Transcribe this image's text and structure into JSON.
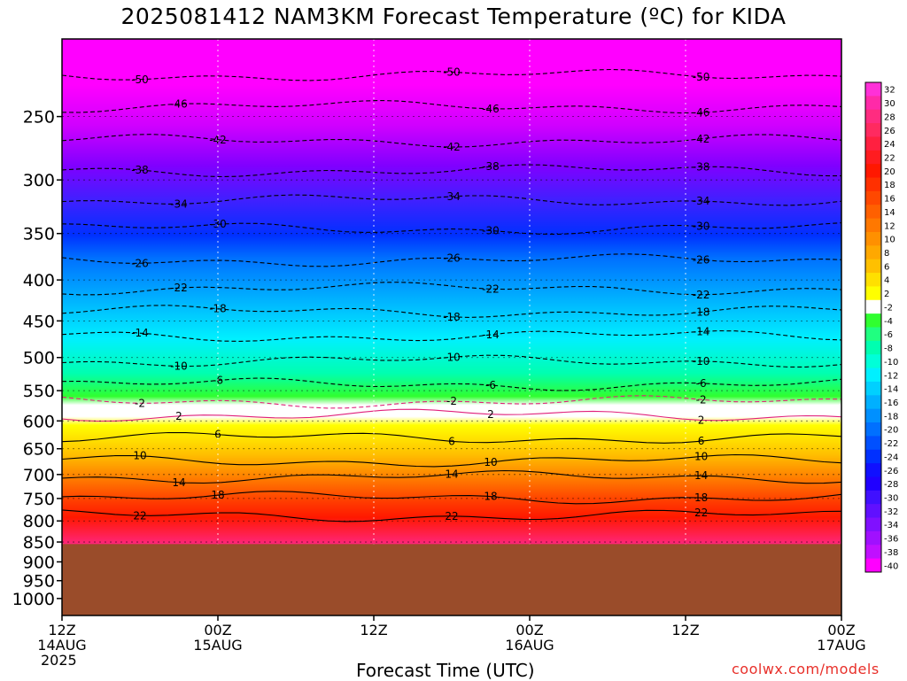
{
  "chart_data": {
    "type": "heatmap",
    "title": "2025081412 NAM3KM Forecast Temperature (ºC) for KIDA",
    "xlabel": "Forecast Time (UTC)",
    "ylabel": "",
    "credit": "coolwx.com/models",
    "x_ticks": [
      {
        "hour": 0,
        "line1": "12Z",
        "line2": "14AUG",
        "line3": "2025"
      },
      {
        "hour": 12,
        "line1": "00Z",
        "line2": "15AUG",
        "line3": ""
      },
      {
        "hour": 24,
        "line1": "12Z",
        "line2": "",
        "line3": ""
      },
      {
        "hour": 36,
        "line1": "00Z",
        "line2": "16AUG",
        "line3": ""
      },
      {
        "hour": 48,
        "line1": "12Z",
        "line2": "",
        "line3": ""
      },
      {
        "hour": 60,
        "line1": "00Z",
        "line2": "17AUG",
        "line3": ""
      }
    ],
    "xlim_hours": [
      0,
      60
    ],
    "y_ticks": [
      250,
      300,
      350,
      400,
      450,
      500,
      550,
      600,
      650,
      700,
      750,
      800,
      850,
      900,
      950,
      1000
    ],
    "ylim_hPa": [
      200,
      1050
    ],
    "y_scale": "log pressure",
    "ground_level_hPa": 855,
    "colorbar_labels": [
      32,
      30,
      28,
      26,
      24,
      22,
      20,
      18,
      16,
      14,
      12,
      10,
      8,
      6,
      4,
      2,
      -2,
      -4,
      -6,
      -8,
      -10,
      -12,
      -14,
      -16,
      -18,
      -20,
      -22,
      -24,
      -26,
      -28,
      -30,
      -32,
      -34,
      -36,
      -38,
      -40
    ],
    "colorbar_colors": [
      "#ff30d8",
      "#ff2aa8",
      "#ff2c80",
      "#ff2a60",
      "#ff2040",
      "#ff1c20",
      "#ff1800",
      "#ff3000",
      "#ff4800",
      "#ff6000",
      "#ff7800",
      "#ff9000",
      "#ffa800",
      "#ffc000",
      "#ffe000",
      "#ffff00",
      "#ffffff",
      "#30ff30",
      "#20ff80",
      "#00ffb0",
      "#00ffd8",
      "#00f0ff",
      "#00d0ff",
      "#00b0ff",
      "#0090ff",
      "#0070ff",
      "#0050ff",
      "#0030ff",
      "#1010ff",
      "#2000ff",
      "#4010ff",
      "#6010ff",
      "#8010ff",
      "#a010ff",
      "#c010ff",
      "#ff00ff"
    ],
    "isotherms": [
      {
        "label": "-50",
        "p": 222
      },
      {
        "label": "-46",
        "p": 243
      },
      {
        "label": "-42",
        "p": 268
      },
      {
        "label": "-38",
        "p": 292
      },
      {
        "label": "-34",
        "p": 318
      },
      {
        "label": "-30",
        "p": 345
      },
      {
        "label": "-26",
        "p": 378
      },
      {
        "label": "-22",
        "p": 410
      },
      {
        "label": "-18",
        "p": 438
      },
      {
        "label": "-14",
        "p": 470
      },
      {
        "label": "-10",
        "p": 505
      },
      {
        "label": "-6",
        "p": 540
      },
      {
        "label": "-2",
        "p": 568
      },
      {
        "label": "2",
        "p": 590
      },
      {
        "label": "6",
        "p": 630
      },
      {
        "label": "10",
        "p": 673
      },
      {
        "label": "14",
        "p": 705
      },
      {
        "label": "18",
        "p": 748
      },
      {
        "label": "22",
        "p": 788
      }
    ],
    "colors": {
      "ground": "#9a4c2a",
      "isotherm_line": "#000000",
      "zero_line": "#e0207a"
    }
  }
}
